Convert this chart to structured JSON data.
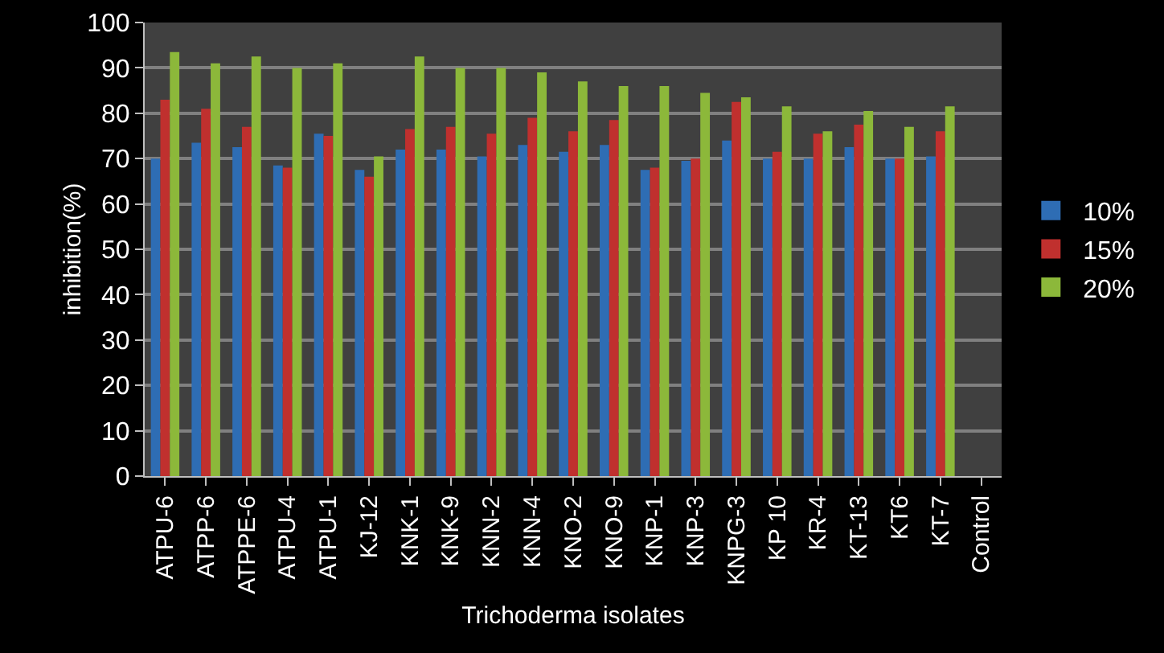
{
  "chart_data": {
    "type": "bar",
    "xlabel": "Trichoderma isolates",
    "ylabel": "inhibition(%)",
    "categories": [
      "ATPU-6",
      "ATPP-6",
      "ATPPE-6",
      "ATPU-4",
      "ATPU-1",
      "KJ-12",
      "KNK-1",
      "KNK-9",
      "KNN-2",
      "KNN-4",
      "KNO-2",
      "KNO-9",
      "KNP-1",
      "KNP-3",
      "KNPG-3",
      "KP 10",
      "KR-4",
      "KT-13",
      "KT6",
      "KT-7",
      "Control"
    ],
    "series": [
      {
        "name": "10%",
        "color": "#2e6db4",
        "values": [
          70,
          73.5,
          72.5,
          68.5,
          75.5,
          67.5,
          72,
          72,
          70.5,
          73,
          71.5,
          73,
          67.5,
          69.5,
          74,
          70,
          70,
          72.5,
          70,
          70.5,
          0
        ]
      },
      {
        "name": "15%",
        "color": "#c0302e",
        "values": [
          83,
          81,
          77,
          68,
          75,
          66,
          76.5,
          77,
          75.5,
          79,
          76,
          78.5,
          68,
          70,
          82.5,
          71.5,
          75.5,
          77.5,
          70,
          76,
          0
        ]
      },
      {
        "name": "20%",
        "color": "#8cb83a",
        "values": [
          93.5,
          91,
          92.5,
          90,
          91,
          70.5,
          92.5,
          90,
          90,
          89,
          87,
          86,
          86,
          84.5,
          83.5,
          81.5,
          76,
          80.5,
          77,
          81.5,
          0
        ]
      }
    ],
    "ylim": [
      0,
      100
    ],
    "yticks": [
      0,
      10,
      20,
      30,
      40,
      50,
      60,
      70,
      80,
      90,
      100
    ],
    "grid": "y",
    "legend": "right"
  }
}
